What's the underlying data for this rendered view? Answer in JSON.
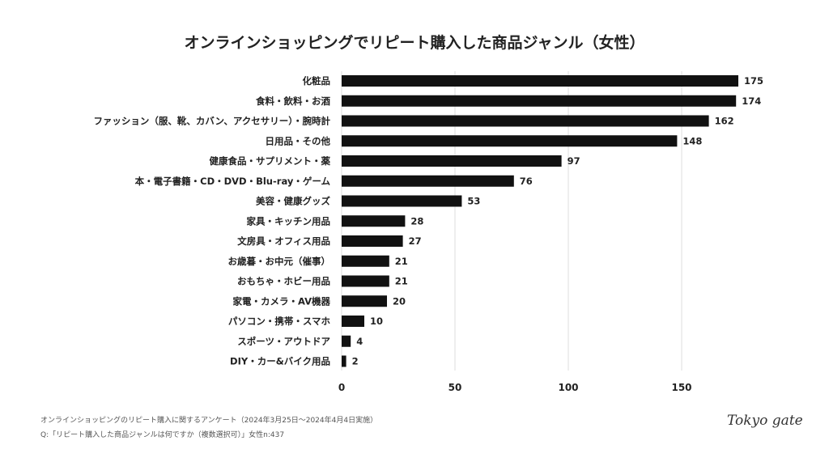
{
  "chart_data": {
    "type": "bar",
    "orientation": "horizontal",
    "title": "オンラインショッピングでリピート購入した商品ジャンル（女性）",
    "categories": [
      "化粧品",
      "食料・飲料・お酒",
      "ファッション（服、靴、カバン、アクセサリー）・腕時計",
      "日用品・その他",
      "健康食品・サプリメント・薬",
      "本・電子書籍・CD・DVD・Blu-ray・ゲーム",
      "美容・健康グッズ",
      "家具・キッチン用品",
      "文房具・オフィス用品",
      "お歳暮・お中元（催事）",
      "おもちゃ・ホビー用品",
      "家電・カメラ・AV機器",
      "パソコン・携帯・スマホ",
      "スポーツ・アウトドア",
      "DIY・カー&バイク用品"
    ],
    "values": [
      175,
      174,
      162,
      148,
      97,
      76,
      53,
      28,
      27,
      21,
      21,
      20,
      10,
      4,
      2
    ],
    "xticks": [
      "0",
      "50",
      "100",
      "150"
    ],
    "xlim": [
      0,
      175
    ],
    "grid": true,
    "bar_color": "#111111",
    "grid_color": "#dddddd"
  },
  "footer": {
    "line1": "オンラインショッピングのリピート購入に関するアンケート（2024年3月25日〜2024年4月4日実施）",
    "line2": "Q:「リピート購入した商品ジャンルは何ですか（複数選択可）」女性n:437"
  },
  "logo": "Tokyo gate"
}
